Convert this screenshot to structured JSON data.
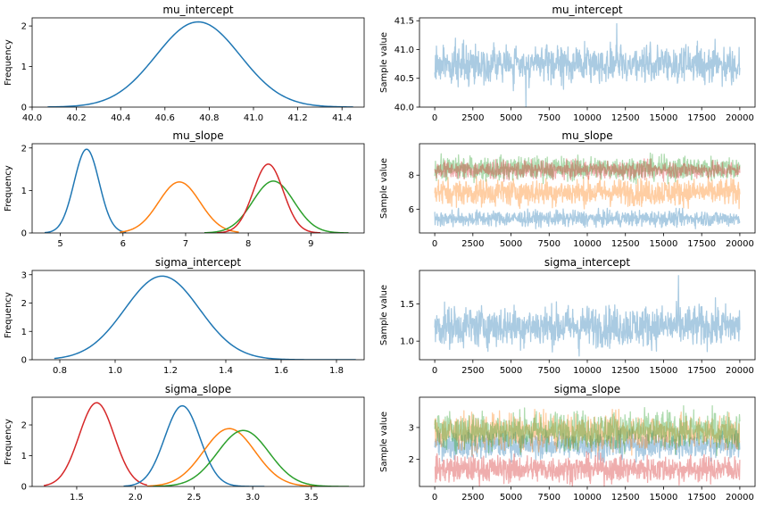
{
  "chart_data": [
    {
      "type": "line",
      "kind": "density",
      "title": "mu_intercept",
      "ylabel": "Frequency",
      "xlim": [
        40.0,
        41.5
      ],
      "ylim": [
        0,
        2.2
      ],
      "xticks": [
        "40.0",
        "40.2",
        "40.4",
        "40.6",
        "40.8",
        "41.0",
        "41.2",
        "41.4"
      ],
      "yticks": [
        "0",
        "1",
        "2"
      ],
      "series": [
        {
          "color": "#1f77b4",
          "mean": 40.75,
          "sd": 0.19,
          "peak": 2.1,
          "range": [
            40.07,
            41.45
          ]
        }
      ]
    },
    {
      "type": "line",
      "kind": "trace",
      "title": "mu_intercept",
      "ylabel": "Sample value",
      "xlim": [
        -1000,
        21000
      ],
      "ylim": [
        40.0,
        41.55
      ],
      "xticks": [
        "0",
        "2500",
        "5000",
        "7500",
        "10000",
        "12500",
        "15000",
        "17500",
        "20000"
      ],
      "yticks": [
        "40.0",
        "40.5",
        "41.0",
        "41.5"
      ],
      "series": [
        {
          "color": "#1f77b4",
          "center": 40.75,
          "half_band": 0.35,
          "max": 41.45,
          "min": 40.0
        }
      ]
    },
    {
      "type": "line",
      "kind": "density",
      "title": "mu_slope",
      "ylabel": "Frequency",
      "xlim": [
        4.55,
        9.85
      ],
      "ylim": [
        0,
        2.1
      ],
      "xticks": [
        "5",
        "6",
        "7",
        "8",
        "9"
      ],
      "yticks": [
        "0",
        "1",
        "2"
      ],
      "series": [
        {
          "color": "#1f77b4",
          "mean": 5.42,
          "sd": 0.2,
          "peak": 1.97,
          "range": [
            4.75,
            6.05
          ]
        },
        {
          "color": "#ff7f0e",
          "mean": 6.9,
          "sd": 0.33,
          "peak": 1.2,
          "range": [
            5.95,
            7.85
          ]
        },
        {
          "color": "#2ca02c",
          "mean": 8.4,
          "sd": 0.33,
          "peak": 1.22,
          "range": [
            7.3,
            9.6
          ]
        },
        {
          "color": "#d62728",
          "mean": 8.32,
          "sd": 0.24,
          "peak": 1.62,
          "range": [
            7.5,
            9.15
          ]
        }
      ]
    },
    {
      "type": "line",
      "kind": "trace",
      "title": "mu_slope",
      "ylabel": "Sample value",
      "xlim": [
        -1000,
        21000
      ],
      "ylim": [
        4.6,
        9.85
      ],
      "xticks": [
        "0",
        "2500",
        "5000",
        "7500",
        "10000",
        "12500",
        "15000",
        "17500",
        "20000"
      ],
      "yticks": [
        "6",
        "8"
      ],
      "series": [
        {
          "color": "#1f77b4",
          "center": 5.45,
          "half_band": 0.5
        },
        {
          "color": "#ff7f0e",
          "center": 7.0,
          "half_band": 0.85
        },
        {
          "color": "#2ca02c",
          "center": 8.4,
          "half_band": 0.75
        },
        {
          "color": "#d62728",
          "center": 8.3,
          "half_band": 0.55
        }
      ]
    },
    {
      "type": "line",
      "kind": "density",
      "title": "sigma_intercept",
      "ylabel": "Frequency",
      "xlim": [
        0.7,
        1.9
      ],
      "ylim": [
        0,
        3.15
      ],
      "xticks": [
        "0.8",
        "1.0",
        "1.2",
        "1.4",
        "1.6",
        "1.8"
      ],
      "yticks": [
        "0",
        "1",
        "2",
        "3"
      ],
      "series": [
        {
          "color": "#1f77b4",
          "mean": 1.17,
          "sd": 0.135,
          "peak": 2.95,
          "range": [
            0.78,
            1.87
          ]
        }
      ]
    },
    {
      "type": "line",
      "kind": "trace",
      "title": "sigma_intercept",
      "ylabel": "Sample value",
      "xlim": [
        -1000,
        21000
      ],
      "ylim": [
        0.75,
        1.95
      ],
      "xticks": [
        "0",
        "2500",
        "5000",
        "7500",
        "10000",
        "12500",
        "15000",
        "17500",
        "20000"
      ],
      "yticks": [
        "1.0",
        "1.5"
      ],
      "series": [
        {
          "color": "#1f77b4",
          "center": 1.2,
          "half_band": 0.3,
          "max": 1.88,
          "min": 0.8
        }
      ]
    },
    {
      "type": "line",
      "kind": "density",
      "title": "sigma_slope",
      "ylabel": "Frequency",
      "xlim": [
        1.12,
        3.95
      ],
      "ylim": [
        0,
        2.9
      ],
      "xticks": [
        "1.5",
        "2.0",
        "2.5",
        "3.0",
        "3.5"
      ],
      "yticks": [
        "0",
        "1",
        "2"
      ],
      "series": [
        {
          "color": "#d62728",
          "mean": 1.67,
          "sd": 0.15,
          "peak": 2.72,
          "range": [
            1.22,
            2.1
          ]
        },
        {
          "color": "#1f77b4",
          "mean": 2.4,
          "sd": 0.15,
          "peak": 2.62,
          "range": [
            1.9,
            3.1
          ]
        },
        {
          "color": "#ff7f0e",
          "mean": 2.8,
          "sd": 0.22,
          "peak": 1.88,
          "range": [
            2.1,
            3.6
          ]
        },
        {
          "color": "#2ca02c",
          "mean": 2.92,
          "sd": 0.22,
          "peak": 1.82,
          "range": [
            2.15,
            3.82
          ]
        }
      ]
    },
    {
      "type": "line",
      "kind": "trace",
      "title": "sigma_slope",
      "ylabel": "Sample value",
      "xlim": [
        -1000,
        21000
      ],
      "ylim": [
        1.15,
        3.95
      ],
      "xticks": [
        "0",
        "2500",
        "5000",
        "7500",
        "10000",
        "12500",
        "15000",
        "17500",
        "20000"
      ],
      "yticks": [
        "2",
        "3"
      ],
      "series": [
        {
          "color": "#1f77b4",
          "center": 2.45,
          "half_band": 0.45
        },
        {
          "color": "#ff7f0e",
          "center": 2.85,
          "half_band": 0.6
        },
        {
          "color": "#2ca02c",
          "center": 2.9,
          "half_band": 0.65
        },
        {
          "color": "#d62728",
          "center": 1.7,
          "half_band": 0.45
        }
      ]
    }
  ]
}
